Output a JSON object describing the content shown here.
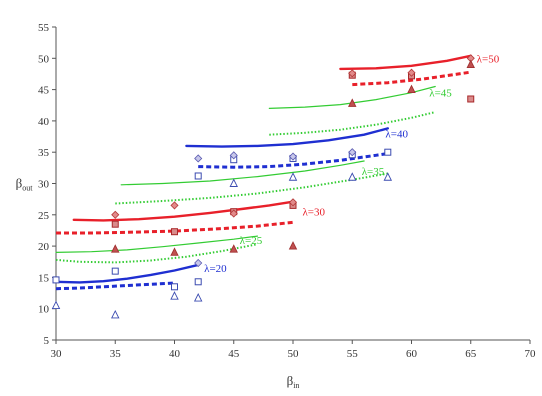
{
  "chart_data": {
    "type": "line",
    "title": "",
    "xlabel_main": "β",
    "xlabel_sub": "in",
    "ylabel_main": "β",
    "ylabel_sub": "out",
    "xlim": [
      30,
      70
    ],
    "ylim": [
      5,
      55
    ],
    "xticks": [
      30,
      35,
      40,
      45,
      50,
      55,
      60,
      65,
      70
    ],
    "yticks": [
      5,
      10,
      15,
      20,
      25,
      30,
      35,
      40,
      45,
      50,
      55
    ],
    "grid": false,
    "legend": "none",
    "groups": [
      {
        "label": "λ=20",
        "label_pos": [
          42.5,
          16.5
        ],
        "color": "#1f2fd1",
        "solid": [
          [
            30,
            14.3
          ],
          [
            32,
            14.2
          ],
          [
            34,
            14.4
          ],
          [
            36,
            14.8
          ],
          [
            38,
            15.4
          ],
          [
            40,
            16.1
          ],
          [
            42,
            17.0
          ]
        ],
        "dashed": [
          [
            30,
            13.2
          ],
          [
            32,
            13.3
          ],
          [
            34,
            13.5
          ],
          [
            36,
            13.7
          ],
          [
            38,
            13.9
          ],
          [
            40,
            14.1
          ]
        ],
        "dotted": [],
        "squares": [
          [
            35,
            16
          ],
          [
            40,
            13.5
          ],
          [
            42,
            14.3
          ],
          [
            30,
            14.6
          ]
        ],
        "diamonds": [
          [
            42,
            17.3
          ]
        ],
        "triangles": [
          [
            30,
            10.5
          ],
          [
            35,
            9
          ],
          [
            40,
            12
          ],
          [
            42,
            11.7
          ]
        ]
      },
      {
        "label": "λ=25",
        "label_pos": [
          45.5,
          21
        ],
        "color": "#33cc33",
        "solid": [
          [
            30,
            19
          ],
          [
            33,
            19.1
          ],
          [
            36,
            19.4
          ],
          [
            39,
            19.9
          ],
          [
            42,
            20.5
          ],
          [
            45,
            21.1
          ],
          [
            47,
            21.6
          ]
        ],
        "dashed": [],
        "dotted": [
          [
            30,
            17.8
          ],
          [
            32,
            17.5
          ],
          [
            35,
            17.4
          ],
          [
            38,
            17.7
          ],
          [
            41,
            18.3
          ],
          [
            44,
            19.2
          ],
          [
            47,
            20.3
          ]
        ],
        "squares": [],
        "diamonds": [],
        "triangles": []
      },
      {
        "label": "λ=30",
        "label_pos": [
          50.8,
          25.5
        ],
        "color": "#e8202a",
        "solid": [
          [
            31.5,
            24.2
          ],
          [
            34,
            24.1
          ],
          [
            37,
            24.3
          ],
          [
            40,
            24.7
          ],
          [
            43,
            25.3
          ],
          [
            46,
            26.0
          ],
          [
            48,
            26.5
          ],
          [
            50,
            27.1
          ]
        ],
        "dashed": [
          [
            30,
            22.1
          ],
          [
            33,
            22.1
          ],
          [
            36,
            22.2
          ],
          [
            40,
            22.4
          ],
          [
            44,
            22.8
          ],
          [
            47,
            23.2
          ],
          [
            50,
            23.8
          ]
        ],
        "dotted": [],
        "squares": [
          [
            35,
            23.5
          ],
          [
            40,
            22.3
          ],
          [
            45,
            25.5
          ],
          [
            50,
            26.5
          ]
        ],
        "diamonds": [
          [
            35,
            25
          ],
          [
            40,
            26.5
          ],
          [
            45,
            25.2
          ],
          [
            50,
            27
          ]
        ],
        "triangles": [
          [
            35,
            19.5
          ],
          [
            40,
            19
          ],
          [
            45,
            19.5
          ],
          [
            50,
            20
          ]
        ]
      },
      {
        "label": "λ=35",
        "label_pos": [
          55.8,
          32
        ],
        "color": "#33cc33",
        "solid": [
          [
            35.5,
            29.8
          ],
          [
            39,
            30.0
          ],
          [
            43,
            30.4
          ],
          [
            47,
            31.1
          ],
          [
            51,
            32.0
          ],
          [
            54,
            32.9
          ],
          [
            56,
            33.6
          ]
        ],
        "dashed": [],
        "dotted": [
          [
            35,
            26.8
          ],
          [
            39,
            27.2
          ],
          [
            43,
            27.7
          ],
          [
            47,
            28.4
          ],
          [
            51,
            29.4
          ],
          [
            55,
            30.6
          ],
          [
            58,
            31.6
          ]
        ],
        "squares": [],
        "diamonds": [],
        "triangles": []
      },
      {
        "label": "λ=40",
        "label_pos": [
          57.8,
          38
        ],
        "color": "#1f2fd1",
        "solid": [
          [
            41,
            36.0
          ],
          [
            44,
            35.9
          ],
          [
            47,
            36.0
          ],
          [
            50,
            36.3
          ],
          [
            53,
            36.9
          ],
          [
            56,
            37.8
          ],
          [
            58,
            38.8
          ]
        ],
        "dashed": [
          [
            42,
            32.7
          ],
          [
            45,
            32.6
          ],
          [
            48,
            32.7
          ],
          [
            51,
            33.1
          ],
          [
            54,
            33.7
          ],
          [
            57,
            34.5
          ],
          [
            58,
            34.8
          ]
        ],
        "dotted": [],
        "squares": [
          [
            42,
            31.2
          ],
          [
            45,
            33.8
          ],
          [
            50,
            34
          ],
          [
            55,
            34.6
          ],
          [
            58,
            35
          ]
        ],
        "diamonds": [
          [
            42,
            34
          ],
          [
            45,
            34.5
          ],
          [
            50,
            34.3
          ],
          [
            55,
            35
          ]
        ],
        "triangles": [
          [
            45,
            30
          ],
          [
            50,
            31
          ],
          [
            55,
            31
          ],
          [
            58,
            31
          ]
        ]
      },
      {
        "label": "λ=45",
        "label_pos": [
          61.5,
          44.5
        ],
        "color": "#33cc33",
        "solid": [
          [
            48,
            42.0
          ],
          [
            51,
            42.2
          ],
          [
            54,
            42.6
          ],
          [
            57,
            43.4
          ],
          [
            60,
            44.5
          ],
          [
            62,
            45.5
          ]
        ],
        "dashed": [],
        "dotted": [
          [
            48,
            37.8
          ],
          [
            51,
            38.1
          ],
          [
            54,
            38.6
          ],
          [
            57,
            39.4
          ],
          [
            60,
            40.5
          ],
          [
            62,
            41.4
          ]
        ],
        "squares": [],
        "diamonds": [],
        "triangles": []
      },
      {
        "label": "λ=50",
        "label_pos": [
          65.5,
          50
        ],
        "color": "#e8202a",
        "solid": [
          [
            54,
            48.3
          ],
          [
            57,
            48.4
          ],
          [
            60,
            48.8
          ],
          [
            63,
            49.6
          ],
          [
            65,
            50.4
          ]
        ],
        "dashed": [
          [
            55,
            45.8
          ],
          [
            58,
            46.1
          ],
          [
            61,
            46.7
          ],
          [
            64,
            47.5
          ],
          [
            65,
            47.8
          ]
        ],
        "dotted": [],
        "squares": [
          [
            55,
            47.3
          ],
          [
            60,
            47.2
          ],
          [
            65,
            43.5
          ]
        ],
        "diamonds": [
          [
            55,
            47.6
          ],
          [
            60,
            47.7
          ],
          [
            65,
            50
          ]
        ],
        "triangles": [
          [
            55,
            42.8
          ],
          [
            60,
            45
          ],
          [
            65,
            49
          ]
        ]
      }
    ]
  }
}
